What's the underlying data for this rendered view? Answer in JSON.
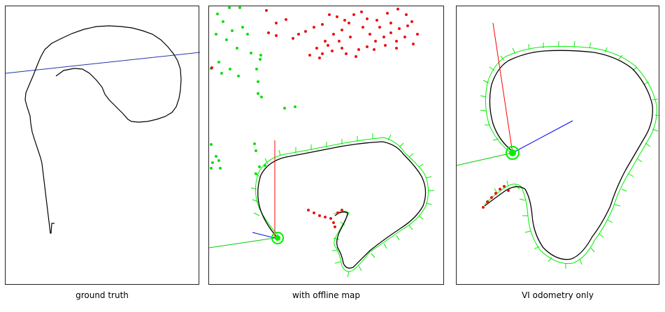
{
  "panels": [
    {
      "caption": "ground truth"
    },
    {
      "caption": "with offline map"
    },
    {
      "caption": "VI odometry only"
    }
  ],
  "colors": {
    "trajectory": "#000000",
    "pose_frustum": "#00ee00",
    "map_points_green": "#11dd11",
    "map_points_red": "#ee1111",
    "axis_x": "#ff0000",
    "axis_y": "#00cc00",
    "axis_z": "#0000ff"
  }
}
